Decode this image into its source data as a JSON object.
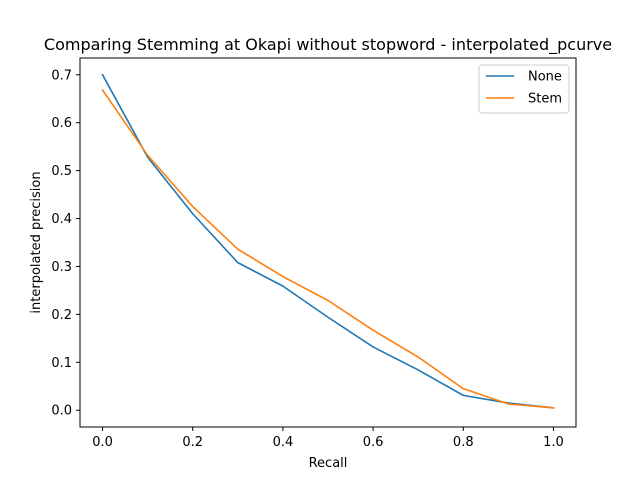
{
  "chart_data": {
    "type": "line",
    "title": "Comparing Stemming at Okapi without stopword - interpolated_pcurve",
    "xlabel": "Recall",
    "ylabel": "interpolated precision",
    "xlim": [
      -0.05,
      1.05
    ],
    "ylim": [
      -0.035,
      0.735
    ],
    "xticks": [
      0.0,
      0.2,
      0.4,
      0.6,
      0.8,
      1.0
    ],
    "xtick_labels": [
      "0.0",
      "0.2",
      "0.4",
      "0.6",
      "0.8",
      "1.0"
    ],
    "yticks": [
      0.0,
      0.1,
      0.2,
      0.3,
      0.4,
      0.5,
      0.6,
      0.7
    ],
    "ytick_labels": [
      "0.0",
      "0.1",
      "0.2",
      "0.3",
      "0.4",
      "0.5",
      "0.6",
      "0.7"
    ],
    "grid": false,
    "legend_position": "top-right",
    "x": [
      0.0,
      0.1,
      0.2,
      0.3,
      0.4,
      0.5,
      0.6,
      0.7,
      0.8,
      0.9,
      1.0
    ],
    "series": [
      {
        "name": "None",
        "color": "#1f77b4",
        "values": [
          0.7,
          0.528,
          0.41,
          0.308,
          0.259,
          0.194,
          0.132,
          0.084,
          0.031,
          0.015,
          0.005
        ]
      },
      {
        "name": "Stem",
        "color": "#ff7f0e",
        "values": [
          0.668,
          0.532,
          0.425,
          0.336,
          0.279,
          0.229,
          0.167,
          0.111,
          0.045,
          0.013,
          0.005
        ]
      }
    ]
  }
}
